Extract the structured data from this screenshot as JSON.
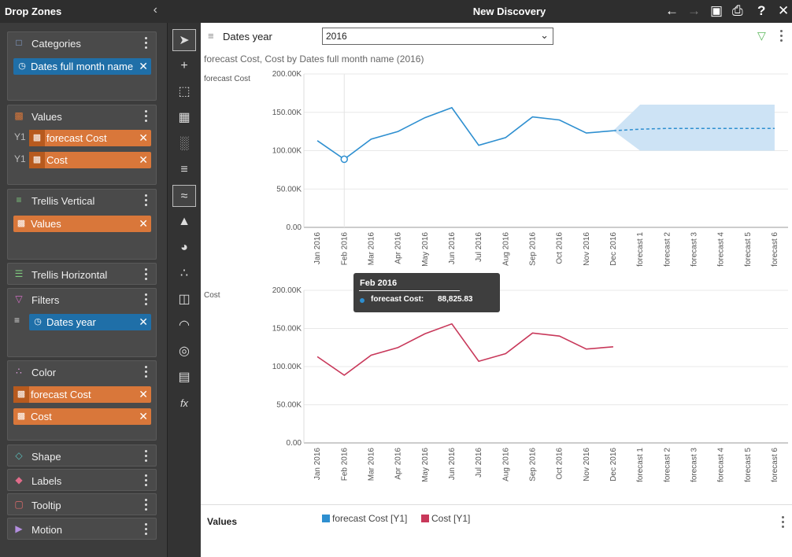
{
  "left_panel": {
    "title": "Drop Zones",
    "zones": {
      "categories": {
        "title": "Categories",
        "items": [
          "Dates full month name"
        ]
      },
      "values": {
        "title": "Values",
        "items": [
          "forecast Cost",
          "Cost"
        ],
        "axis_labels": [
          "Y1",
          "Y1"
        ]
      },
      "trellis_vertical": {
        "title": "Trellis Vertical",
        "items": [
          "Values"
        ]
      },
      "trellis_horizontal": {
        "title": "Trellis Horizontal"
      },
      "filters": {
        "title": "Filters",
        "items": [
          "Dates year"
        ]
      },
      "color": {
        "title": "Color",
        "items": [
          "forecast Cost",
          "Cost"
        ]
      },
      "shape": {
        "title": "Shape"
      },
      "labels": {
        "title": "Labels"
      },
      "tooltip": {
        "title": "Tooltip"
      },
      "motion": {
        "title": "Motion"
      }
    }
  },
  "titlebar": {
    "title": "New Discovery"
  },
  "filter": {
    "label": "Dates year",
    "value": "2016"
  },
  "subtitle": "forecast Cost, Cost by Dates full month name (2016)",
  "tooltip": {
    "title": "Feb 2016",
    "label": "forecast Cost:",
    "value": "88,825.83"
  },
  "footer": {
    "title": "Values",
    "legend": [
      {
        "name": "forecast Cost [Y1]",
        "color": "#2e8fd0"
      },
      {
        "name": "Cost [Y1]",
        "color": "#c8385a"
      }
    ]
  },
  "chart_data": [
    {
      "type": "line",
      "series_title": "forecast Cost",
      "categories": [
        "Jan 2016",
        "Feb 2016",
        "Mar 2016",
        "Apr 2016",
        "May 2016",
        "Jun 2016",
        "Jul 2016",
        "Aug 2016",
        "Sep 2016",
        "Oct 2016",
        "Nov 2016",
        "Dec 2016",
        "forecast 1",
        "forecast 2",
        "forecast 3",
        "forecast 4",
        "forecast 5",
        "forecast 6"
      ],
      "values": [
        113,
        88.8,
        115,
        125,
        143,
        156,
        107,
        117,
        144,
        140,
        123,
        126,
        null,
        null,
        null,
        null,
        null,
        null
      ],
      "forecast": [
        null,
        null,
        null,
        null,
        null,
        null,
        null,
        null,
        null,
        null,
        null,
        126,
        128,
        129,
        129,
        129,
        129,
        129
      ],
      "forecast_band": {
        "upper": 160,
        "lower": 100
      },
      "y_ticks": [
        "0.00",
        "50.00K",
        "100.00K",
        "150.00K",
        "200.00K"
      ],
      "ylim": [
        0,
        200
      ],
      "color": "#2e8fd0"
    },
    {
      "type": "line",
      "series_title": "Cost",
      "categories": [
        "Jan 2016",
        "Feb 2016",
        "Mar 2016",
        "Apr 2016",
        "May 2016",
        "Jun 2016",
        "Jul 2016",
        "Aug 2016",
        "Sep 2016",
        "Oct 2016",
        "Nov 2016",
        "Dec 2016",
        "forecast 1",
        "forecast 2",
        "forecast 3",
        "forecast 4",
        "forecast 5",
        "forecast 6"
      ],
      "values": [
        113,
        88.8,
        115,
        125,
        143,
        156,
        107,
        117,
        144,
        140,
        123,
        126,
        null,
        null,
        null,
        null,
        null,
        null
      ],
      "y_ticks": [
        "0.00",
        "50.00K",
        "100.00K",
        "150.00K",
        "200.00K"
      ],
      "ylim": [
        0,
        200
      ],
      "color": "#c8385a"
    }
  ]
}
